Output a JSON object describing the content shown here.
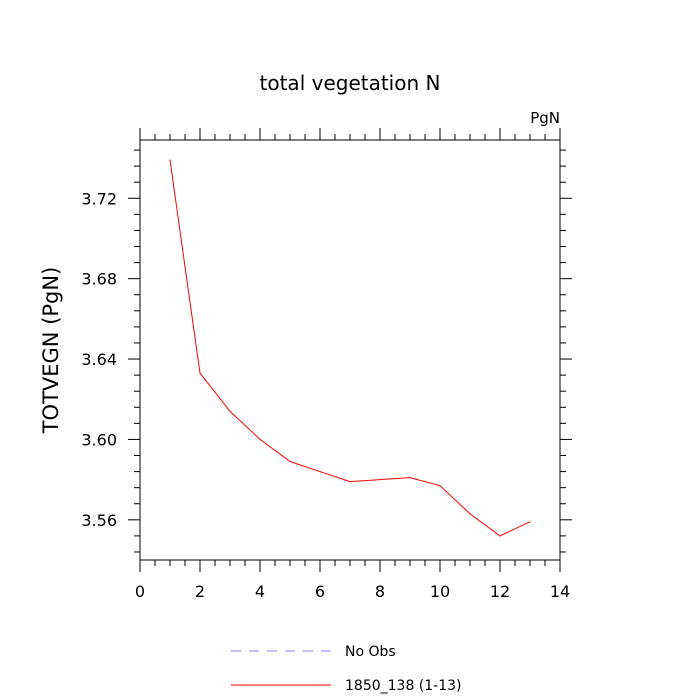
{
  "chart_data": {
    "type": "line",
    "title": "total vegetation N",
    "units_label": "PgN",
    "xlabel": "",
    "ylabel": "TOTVEGN  (PgN)",
    "xlim": [
      0,
      14
    ],
    "ylim": [
      3.54,
      3.749
    ],
    "x_ticks": [
      0,
      2,
      4,
      6,
      8,
      10,
      12,
      14
    ],
    "x_tick_labels": [
      "0",
      "2",
      "4",
      "6",
      "8",
      "10",
      "12",
      "14"
    ],
    "y_ticks": [
      3.56,
      3.6,
      3.64,
      3.68,
      3.72
    ],
    "y_tick_labels": [
      "3.56",
      "3.60",
      "3.64",
      "3.68",
      "3.72"
    ],
    "series": [
      {
        "name": "1850_138 (1-13)",
        "color": "#ff0000",
        "dash": "solid",
        "x": [
          1,
          2,
          3,
          4,
          5,
          6,
          7,
          8,
          9,
          10,
          11,
          12,
          13
        ],
        "y": [
          3.739,
          3.633,
          3.614,
          3.6,
          3.589,
          3.584,
          3.579,
          3.58,
          3.581,
          3.577,
          3.563,
          3.552,
          3.559
        ]
      }
    ],
    "legend": [
      {
        "label": "No Obs",
        "color": "#8080ff",
        "dash": "dashed"
      },
      {
        "label": "1850_138 (1-13)",
        "color": "#ff0000",
        "dash": "solid"
      }
    ],
    "legend_position": "bottom-center"
  }
}
